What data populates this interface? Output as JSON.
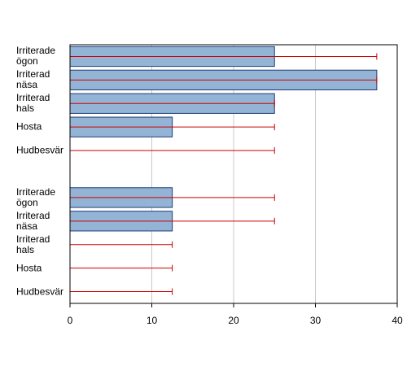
{
  "chart_data": {
    "type": "bar",
    "orientation": "horizontal",
    "categories": [
      "Irriterade\nögon",
      "Irriterad\nnäsa",
      "Irriterad\nhals",
      "Hosta",
      "Hudbesvär",
      null,
      "Irriterade\nögon",
      "Irriterad\nnäsa",
      "Irriterad\nhals",
      "Hosta",
      "Hudbesvär"
    ],
    "values": [
      25,
      37.5,
      25,
      12.5,
      0,
      null,
      12.5,
      12.5,
      0,
      0,
      0
    ],
    "error_low": [
      0,
      0,
      0,
      0,
      0,
      null,
      0,
      0,
      0,
      0,
      0
    ],
    "error_high": [
      37.5,
      37.5,
      25,
      25,
      25,
      null,
      25,
      25,
      12.5,
      12.5,
      12.5
    ],
    "color": "#94b4d6",
    "error_color": "#cc0000",
    "xlim": [
      0,
      40
    ],
    "xticks": [
      0,
      10,
      20,
      30,
      40
    ],
    "grid": true
  }
}
